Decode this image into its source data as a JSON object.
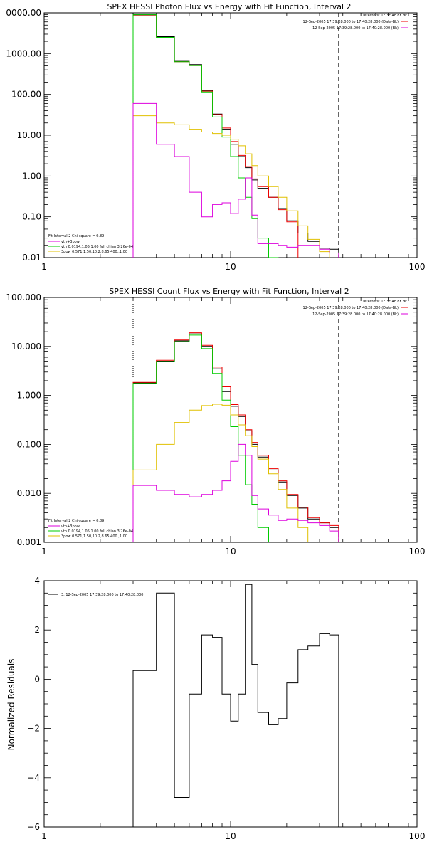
{
  "chart_data": [
    {
      "type": "line",
      "title": "SPEX HESSI Photon Flux vs Energy with Fit Function, Interval 2",
      "xscale": "log",
      "yscale": "log",
      "xlim": [
        1,
        100
      ],
      "ylim": [
        0.01,
        10000
      ],
      "x_tick_labels": [
        "1",
        "10",
        "100"
      ],
      "y_tick_labels": [
        "0.01",
        "0.10",
        "1.00",
        "10.00",
        "100.00",
        "1000.00",
        "0000.00"
      ],
      "markers": {
        "dotted_x": 3,
        "dashed_x": 38
      },
      "legend_top": [
        "Detectors: 1F 3F 4F 8F 9F",
        "12-Sep-2005 17:39:28.000 to 17:40:28.000 (Data-Bk)",
        "12-Sep-2005 17:39:28.000 to 17:40:28.000 (Bk)"
      ],
      "legend_bottom": [
        "Fit Interval 2   Chi-square = 0.89",
        "vth+3pow",
        "vth 0.0194,1.05,1.00  full chian 3.26e-04",
        "3pow 0.571,1.50,10.2,8.65,400.,1.00"
      ],
      "edges": [
        3,
        4,
        5,
        6,
        7,
        8,
        9,
        10,
        11,
        12,
        13,
        14,
        16,
        18,
        20,
        23,
        26,
        30,
        34,
        38
      ],
      "series": [
        {
          "name": "vth+3pow",
          "color": "#000000",
          "values": [
            9000,
            2600,
            650,
            540,
            125,
            33,
            14,
            6,
            3,
            1.6,
            0.8,
            0.5,
            0.3,
            0.16,
            0.08,
            0.04,
            0.025,
            0.017,
            0.016
          ]
        },
        {
          "name": "Data-Bk",
          "color": "#ee0000",
          "values": [
            8500,
            2500,
            630,
            510,
            120,
            32,
            15,
            7,
            3.2,
            1.7,
            0.85,
            0.55,
            0.3,
            0.15,
            0.075
          ]
        },
        {
          "name": "vth",
          "color": "#00cc00",
          "values": [
            9000,
            2500,
            630,
            510,
            115,
            28,
            9,
            3,
            0.9,
            0.3,
            0.09,
            0.03,
            0.01,
            0.006,
            0.003,
            0.002,
            0.002,
            0.002,
            0.002
          ]
        },
        {
          "name": "3pow",
          "color": "#e0c000",
          "values": [
            30,
            20,
            18,
            14,
            12,
            11,
            10,
            8,
            5.5,
            3.5,
            1.8,
            1.0,
            0.55,
            0.3,
            0.14,
            0.06,
            0.028,
            0.014,
            0.008
          ]
        },
        {
          "name": "Bk",
          "color": "#dd00dd",
          "values": [
            60,
            6,
            3,
            0.4,
            0.1,
            0.2,
            0.22,
            0.12,
            0.27,
            0.9,
            0.11,
            0.022,
            0.022,
            0.02,
            0.018,
            0.02,
            0.02,
            0.016,
            0.013
          ]
        }
      ]
    },
    {
      "type": "line",
      "title": "SPEX HESSI Count Flux vs Energy with Fit Function, Interval 2",
      "xscale": "log",
      "yscale": "log",
      "xlim": [
        1,
        100
      ],
      "ylim": [
        0.001,
        100
      ],
      "x_tick_labels": [
        "1",
        "10",
        "100"
      ],
      "y_tick_labels": [
        "0.001",
        "0.010",
        "0.100",
        "1.000",
        "10.000",
        "100.000"
      ],
      "markers": {
        "dotted_x": 3,
        "dashed_x": 38
      },
      "legend_top": [
        "Detectors: 1F 3F 4F 8F 9F",
        "12-Sep-2005 17:39:28.000 to 17:40:28.000 (Data-Bk)",
        "12-Sep-2005 17:39:28.000 to 17:40:28.000 (Bk)"
      ],
      "legend_bottom": [
        "Fit Interval 2   Chi-square = 0.89",
        "vth+3pow",
        "vth 0.0194,1.05,1.00  full chian 3.26e-04",
        "3pow 0.571,1.50,10.2,8.65,400.,1.00"
      ],
      "edges": [
        3,
        4,
        5,
        6,
        7,
        8,
        9,
        10,
        11,
        12,
        13,
        14,
        16,
        18,
        20,
        23,
        26,
        30,
        34,
        38
      ],
      "series": [
        {
          "name": "vth+3pow",
          "color": "#000000",
          "values": [
            1.8,
            5,
            13,
            18,
            10,
            3.5,
            1.2,
            0.6,
            0.37,
            0.19,
            0.1,
            0.055,
            0.03,
            0.017,
            0.009,
            0.005,
            0.003,
            0.0025,
            0.002
          ]
        },
        {
          "name": "Data-Bk",
          "color": "#ee0000",
          "values": [
            1.85,
            5.2,
            13.5,
            19,
            10.5,
            3.8,
            1.5,
            0.65,
            0.4,
            0.2,
            0.11,
            0.06,
            0.032,
            0.018,
            0.0095,
            0.0052,
            0.0032,
            0.0025,
            0.0022
          ]
        },
        {
          "name": "vth",
          "color": "#00cc00",
          "values": [
            1.75,
            4.9,
            12.5,
            17,
            9,
            2.8,
            0.8,
            0.23,
            0.06,
            0.015,
            0.006,
            0.002,
            0.001,
            0.0005
          ]
        },
        {
          "name": "3pow",
          "color": "#e0c000",
          "values": [
            0.03,
            0.1,
            0.28,
            0.5,
            0.62,
            0.66,
            0.63,
            0.4,
            0.25,
            0.15,
            0.09,
            0.05,
            0.025,
            0.012,
            0.005,
            0.002,
            0.0008
          ]
        },
        {
          "name": "Bk",
          "color": "#dd00dd",
          "values": [
            0.0145,
            0.0115,
            0.0095,
            0.0085,
            0.0095,
            0.0115,
            0.018,
            0.045,
            0.1,
            0.06,
            0.009,
            0.0048,
            0.0036,
            0.0028,
            0.003,
            0.0028,
            0.0025,
            0.0022,
            0.0017
          ]
        }
      ]
    },
    {
      "type": "line",
      "title": "",
      "xscale": "log",
      "yscale": "linear",
      "xlim": [
        1,
        100
      ],
      "ylim": [
        -6,
        4
      ],
      "ylabel": "Normalized Residuals",
      "x_tick_labels": [
        "1",
        "10",
        "100"
      ],
      "y_ticks": [
        -6,
        -4,
        -2,
        0,
        2,
        4
      ],
      "y_tick_labels": [
        "−6",
        "−4",
        "−2",
        "0",
        "2",
        "4"
      ],
      "legend": "3. 12-Sep-2005 17:39:28.000 to 17:40:28.000",
      "edges": [
        3,
        4,
        5,
        6,
        7,
        8,
        9,
        10,
        11,
        12,
        13,
        14,
        16,
        18,
        20,
        23,
        26,
        30,
        34,
        38
      ],
      "series": [
        {
          "name": "3. 12-Sep-2005 17:39:28.000 to 17:40:28.000",
          "color": "#000000",
          "values": [
            0.35,
            3.5,
            -4.8,
            -0.6,
            1.8,
            1.7,
            -0.6,
            -1.7,
            -0.6,
            3.85,
            0.6,
            -1.35,
            -1.85,
            -1.6,
            -0.15,
            1.2,
            1.35,
            1.85,
            1.8
          ]
        }
      ]
    }
  ]
}
